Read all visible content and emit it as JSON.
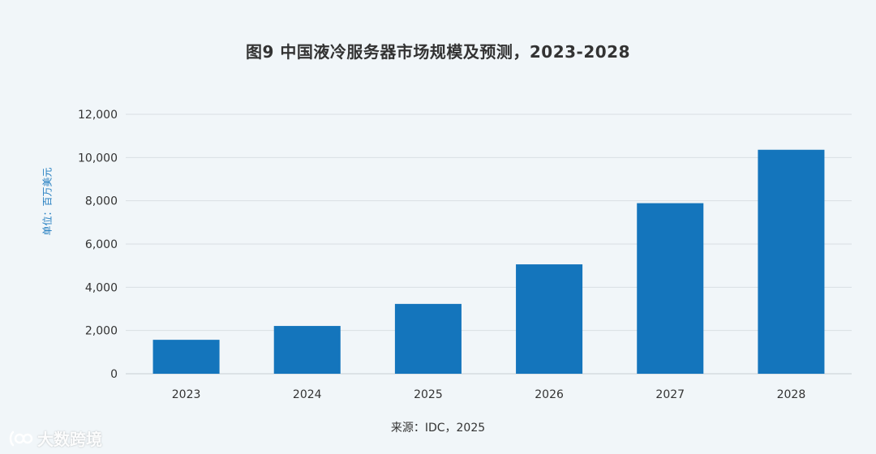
{
  "chart_data": {
    "type": "bar",
    "title": "图9 中国液冷服务器市场规模及预测，2023-2028",
    "ylabel": "单位：百万美元",
    "xlabel": "",
    "categories": [
      "2023",
      "2024",
      "2025",
      "2026",
      "2027",
      "2028"
    ],
    "values": [
      1570,
      2210,
      3230,
      5060,
      7890,
      10360
    ],
    "ylim": [
      0,
      12000
    ],
    "yticks": [
      "0",
      "2,000",
      "4,000",
      "6,000",
      "8,000",
      "10,000",
      "12,000"
    ],
    "ytick_values": [
      0,
      2000,
      4000,
      6000,
      8000,
      10000,
      12000
    ],
    "grid": true,
    "bar_color": "#1475bc",
    "grid_color": "#d9dfe3"
  },
  "source": "来源：IDC，2025",
  "watermark": {
    "text": "大数跨境",
    "icon": "brand-logo-icon"
  }
}
